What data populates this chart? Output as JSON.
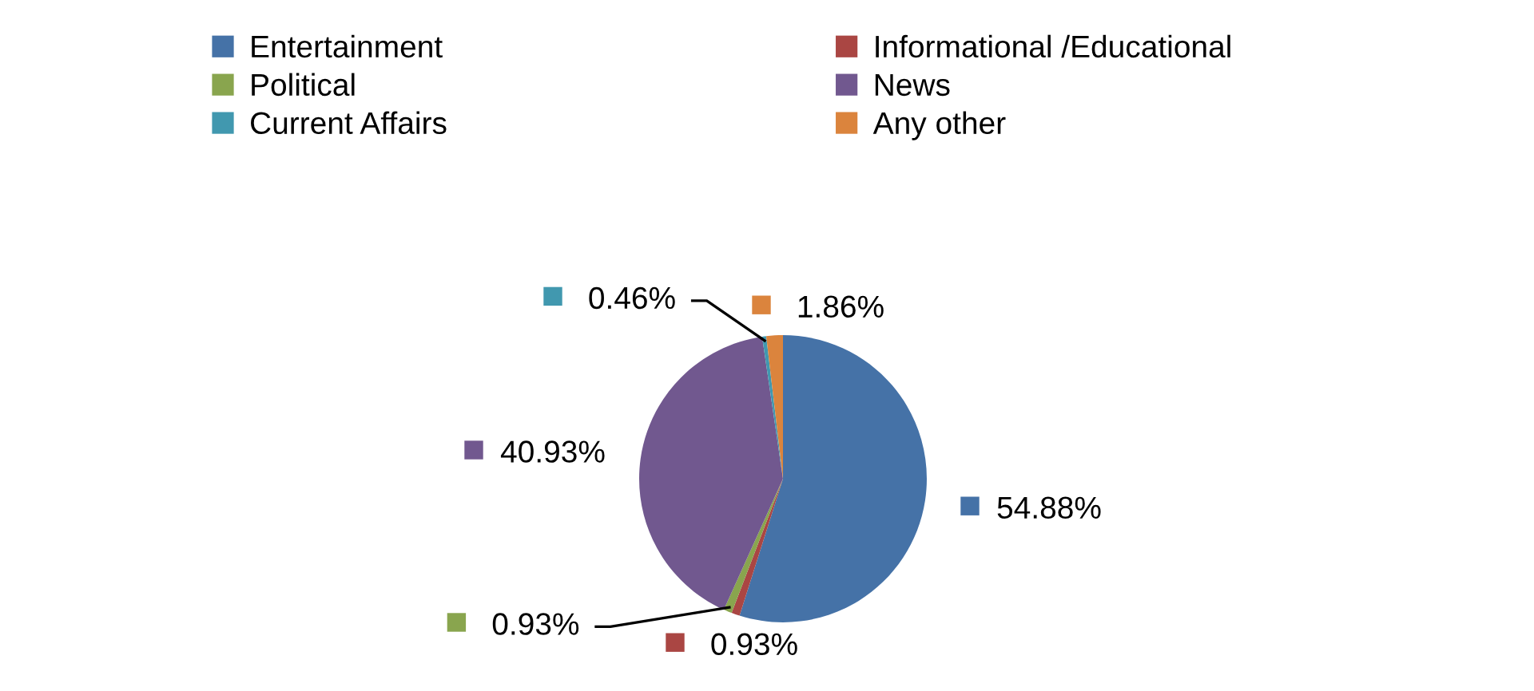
{
  "chart_data": {
    "type": "pie",
    "categories": [
      "Entertainment",
      "Informational /Educational",
      "Political",
      "News",
      "Current Affairs",
      "Any other"
    ],
    "values": [
      54.88,
      0.93,
      0.93,
      40.93,
      0.46,
      1.86
    ],
    "value_labels": [
      "54.88%",
      "0.93%",
      "0.93%",
      "40.93%",
      "0.46%",
      "1.86%"
    ],
    "colors": [
      "#4572a7",
      "#aa4643",
      "#89a54e",
      "#71588f",
      "#4198af",
      "#db843d"
    ],
    "legend": "top"
  }
}
